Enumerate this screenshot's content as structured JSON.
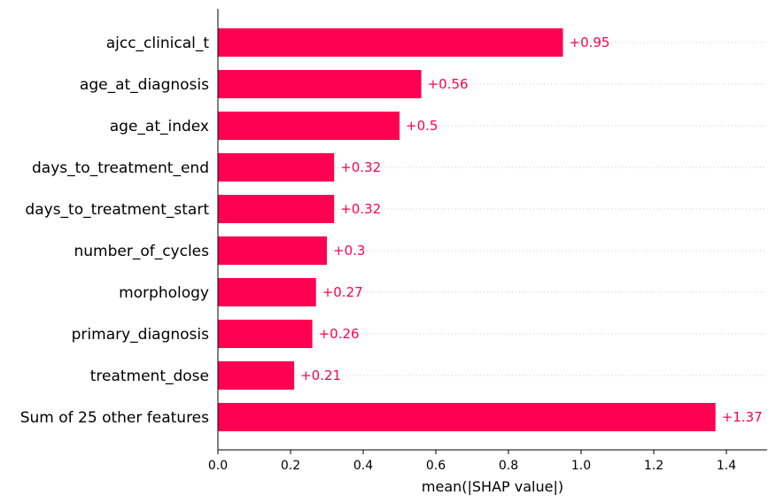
{
  "chart_data": {
    "type": "bar",
    "orientation": "horizontal",
    "categories": [
      "ajcc_clinical_t",
      "age_at_diagnosis",
      "age_at_index",
      "days_to_treatment_end",
      "days_to_treatment_start",
      "number_of_cycles",
      "morphology",
      "primary_diagnosis",
      "treatment_dose",
      "Sum of 25 other features"
    ],
    "values": [
      0.95,
      0.56,
      0.5,
      0.32,
      0.32,
      0.3,
      0.27,
      0.26,
      0.21,
      1.37
    ],
    "value_labels": [
      "+0.95",
      "+0.56",
      "+0.5",
      "+0.32",
      "+0.32",
      "+0.3",
      "+0.27",
      "+0.26",
      "+0.21",
      "+1.37"
    ],
    "xlabel": "mean(|SHAP value|)",
    "xlim": [
      0,
      1.5
    ],
    "xticks": [
      "0.0",
      "0.2",
      "0.4",
      "0.6",
      "0.8",
      "1.0",
      "1.2",
      "1.4"
    ],
    "bar_color": "#ff0052",
    "grid": "dotted horizontal guide lines per bar",
    "legend": "none"
  }
}
